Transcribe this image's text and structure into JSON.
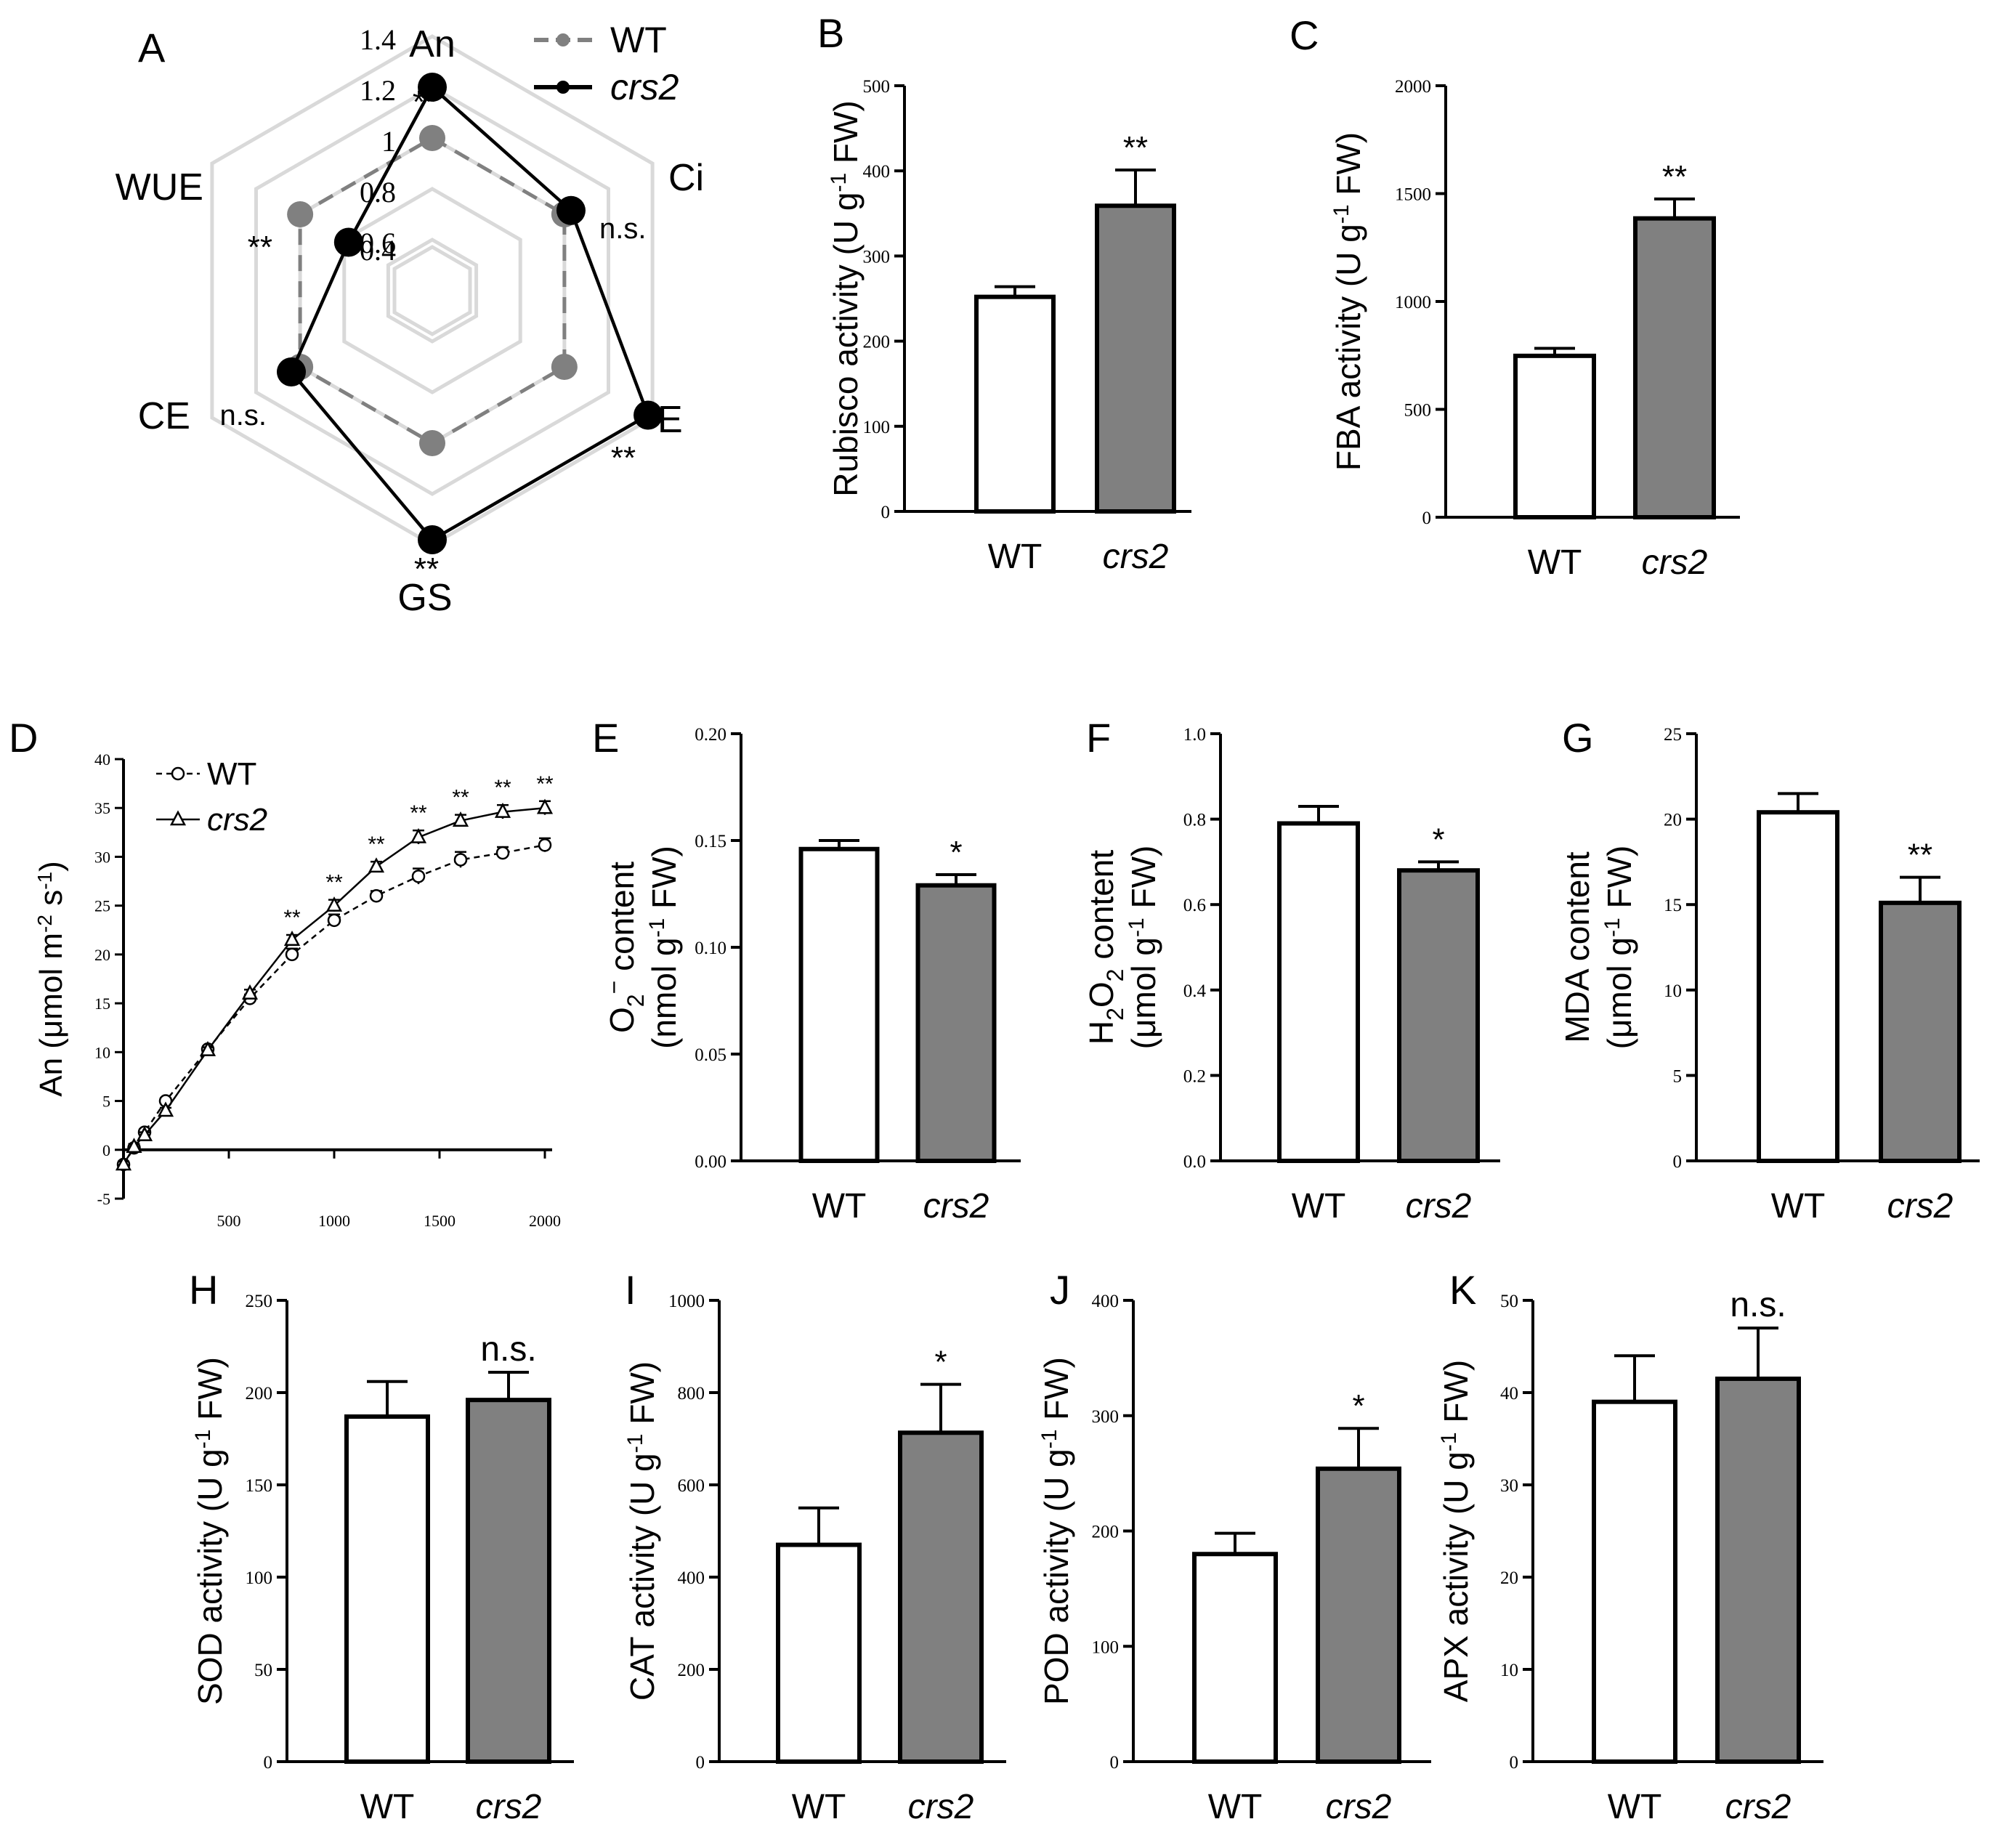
{
  "colors": {
    "wt_fill": "#ffffff",
    "crs2_fill": "#808080",
    "wt_line": "#808080",
    "crs2_line": "#000000",
    "grid": "#d9d9d9",
    "axis": "#000000"
  },
  "chart_data": [
    {
      "panel": "A",
      "type": "radar",
      "axes": [
        "An",
        "Ci",
        "E",
        "GS",
        "CE",
        "WUE"
      ],
      "ring_labels": [
        "0.4",
        "0.6",
        "0.8",
        "1",
        "1.2",
        "1.4"
      ],
      "rmin": 0.4,
      "rmax": 1.4,
      "series": [
        {
          "name": "WT",
          "values": [
            1.0,
            1.0,
            1.0,
            1.0,
            1.0,
            1.0
          ]
        },
        {
          "name": "crs2",
          "values": [
            1.2,
            1.03,
            1.38,
            1.38,
            1.04,
            0.78
          ]
        }
      ],
      "annotations": [
        "**",
        "n.s.",
        "**",
        "**",
        "n.s.",
        "**"
      ]
    },
    {
      "panel": "B",
      "type": "bar",
      "categories": [
        "WT",
        "crs2"
      ],
      "values": [
        252,
        359
      ],
      "errors": [
        12,
        42
      ],
      "ylabel_main": "Rubisco activity (U g",
      "ylabel_sup": "-1",
      "ylabel_tail": " FW)",
      "ylim": [
        0,
        500
      ],
      "yticks": [
        "0",
        "100",
        "200",
        "300",
        "400",
        "500"
      ],
      "sig": "**"
    },
    {
      "panel": "C",
      "type": "bar",
      "categories": [
        "WT",
        "crs2"
      ],
      "values": [
        748,
        1385
      ],
      "errors": [
        35,
        90
      ],
      "ylabel_main": "FBA activity (U g",
      "ylabel_sup": "-1",
      "ylabel_tail": " FW)",
      "ylim": [
        0,
        2000
      ],
      "yticks": [
        "0",
        "500",
        "1000",
        "1500",
        "2000"
      ],
      "sig": "**"
    },
    {
      "panel": "D",
      "type": "line",
      "xlim": [
        0,
        2000
      ],
      "ylim": [
        -5,
        40
      ],
      "xticks": [
        "500",
        "1000",
        "1500",
        "2000"
      ],
      "yticks": [
        "-5",
        "0",
        "5",
        "10",
        "15",
        "20",
        "25",
        "30",
        "35",
        "40"
      ],
      "ylabel_main": "An (μmol m",
      "ylabel_sup1": "-2",
      "ylabel_mid": " s",
      "ylabel_sup2": "-1",
      "ylabel_tail": ")",
      "x": [
        0,
        50,
        100,
        200,
        400,
        600,
        800,
        1000,
        1200,
        1400,
        1600,
        1800,
        2000
      ],
      "series": [
        {
          "name": "WT",
          "values": [
            -1.5,
            0.2,
            1.8,
            5.0,
            10.3,
            15.5,
            20.0,
            23.5,
            26.0,
            28.0,
            29.7,
            30.4,
            31.2
          ],
          "errors": [
            0.3,
            0.3,
            0.3,
            0.3,
            0.3,
            0.4,
            0.6,
            0.6,
            0.5,
            0.8,
            0.8,
            0.6,
            0.7
          ]
        },
        {
          "name": "crs2",
          "values": [
            -1.5,
            0.3,
            1.5,
            4.0,
            10.2,
            16.0,
            21.5,
            25.0,
            29.0,
            32.0,
            33.7,
            34.6,
            35.0
          ],
          "errors": [
            0.3,
            0.3,
            0.3,
            0.3,
            0.3,
            0.4,
            0.5,
            0.6,
            0.5,
            0.7,
            0.6,
            0.7,
            0.7
          ]
        }
      ],
      "sig_x": [
        800,
        1000,
        1200,
        1400,
        1600,
        1800,
        2000
      ],
      "sig": "**"
    },
    {
      "panel": "E",
      "type": "bar",
      "categories": [
        "WT",
        "crs2"
      ],
      "values": [
        0.146,
        0.129
      ],
      "errors": [
        0.004,
        0.005
      ],
      "ylabel_lines": [
        "O2− content",
        "(nmol g-1 FW)"
      ],
      "ylim": [
        0,
        0.2
      ],
      "yticks": [
        "0.00",
        "0.05",
        "0.10",
        "0.15",
        "0.20"
      ],
      "sig": "*"
    },
    {
      "panel": "F",
      "type": "bar",
      "categories": [
        "WT",
        "crs2"
      ],
      "values": [
        0.79,
        0.68
      ],
      "errors": [
        0.04,
        0.02
      ],
      "ylabel_lines": [
        "H2O2 content",
        "(μmol g-1 FW)"
      ],
      "ylim": [
        0,
        1.0
      ],
      "yticks": [
        "0.0",
        "0.2",
        "0.4",
        "0.6",
        "0.8",
        "1.0"
      ],
      "sig": "*"
    },
    {
      "panel": "G",
      "type": "bar",
      "categories": [
        "WT",
        "crs2"
      ],
      "values": [
        20.4,
        15.1
      ],
      "errors": [
        1.1,
        1.5
      ],
      "ylabel_lines": [
        "MDA content",
        "(μmol g-1 FW)"
      ],
      "ylim": [
        0,
        25
      ],
      "yticks": [
        "0",
        "5",
        "10",
        "15",
        "20",
        "25"
      ],
      "sig": "**"
    },
    {
      "panel": "H",
      "type": "bar",
      "categories": [
        "WT",
        "crs2"
      ],
      "values": [
        187,
        196
      ],
      "errors": [
        19,
        15
      ],
      "ylabel_main": "SOD activity (U g",
      "ylabel_sup": "-1",
      "ylabel_tail": " FW)",
      "ylim": [
        0,
        250
      ],
      "yticks": [
        "0",
        "50",
        "100",
        "150",
        "200",
        "250"
      ],
      "sig": "n.s."
    },
    {
      "panel": "I",
      "type": "bar",
      "categories": [
        "WT",
        "crs2"
      ],
      "values": [
        470,
        713
      ],
      "errors": [
        80,
        105
      ],
      "ylabel_main": "CAT activity (U g",
      "ylabel_sup": "-1",
      "ylabel_tail": " FW)",
      "ylim": [
        0,
        1000
      ],
      "yticks": [
        "0",
        "200",
        "400",
        "600",
        "800",
        "1000"
      ],
      "sig": "*"
    },
    {
      "panel": "J",
      "type": "bar",
      "categories": [
        "WT",
        "crs2"
      ],
      "values": [
        180,
        254
      ],
      "errors": [
        18,
        35
      ],
      "ylabel_main": "POD activity (U g",
      "ylabel_sup": "-1",
      "ylabel_tail": " FW)",
      "ylim": [
        0,
        400
      ],
      "yticks": [
        "0",
        "100",
        "200",
        "300",
        "400"
      ],
      "sig": "*"
    },
    {
      "panel": "K",
      "type": "bar",
      "categories": [
        "WT",
        "crs2"
      ],
      "values": [
        39,
        41.5
      ],
      "errors": [
        5,
        5.5
      ],
      "ylabel_main": "APX activity (U g",
      "ylabel_sup": "-1",
      "ylabel_tail": " FW)",
      "ylim": [
        0,
        50
      ],
      "yticks": [
        "0",
        "10",
        "20",
        "30",
        "40",
        "50"
      ],
      "sig": "n.s."
    }
  ]
}
